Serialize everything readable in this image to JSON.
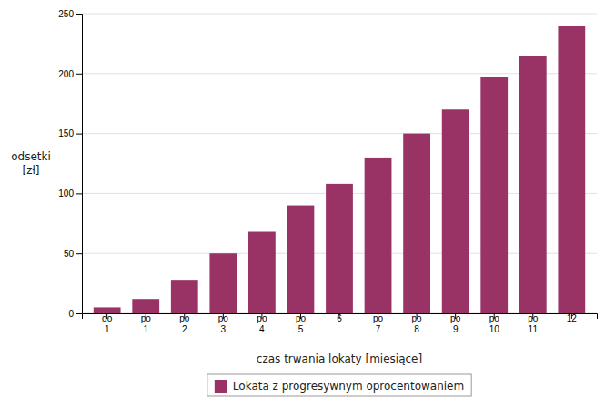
{
  "chart_data": {
    "type": "bar",
    "categories": [
      "do\n1",
      "po\n1",
      "po\n2",
      "po\n3",
      "po\n4",
      "po\n5",
      "6",
      "po\n7",
      "po\n8",
      "po\n9",
      "po\n10",
      "po\n11",
      "12"
    ],
    "series": [
      {
        "name": "Lokata z progresywnym oprocentowaniem",
        "color": "#993366",
        "values": [
          5,
          12,
          28,
          50,
          68,
          90,
          108,
          130,
          150,
          170,
          197,
          215,
          240
        ]
      }
    ],
    "xlabel": "czas trwania lokaty [miesiące]",
    "ylabel": "odsetki\n[zł]",
    "ylim": [
      0,
      250
    ],
    "yticks": [
      0,
      50,
      100,
      150,
      200,
      250
    ],
    "grid": true,
    "legend": "bottom"
  }
}
